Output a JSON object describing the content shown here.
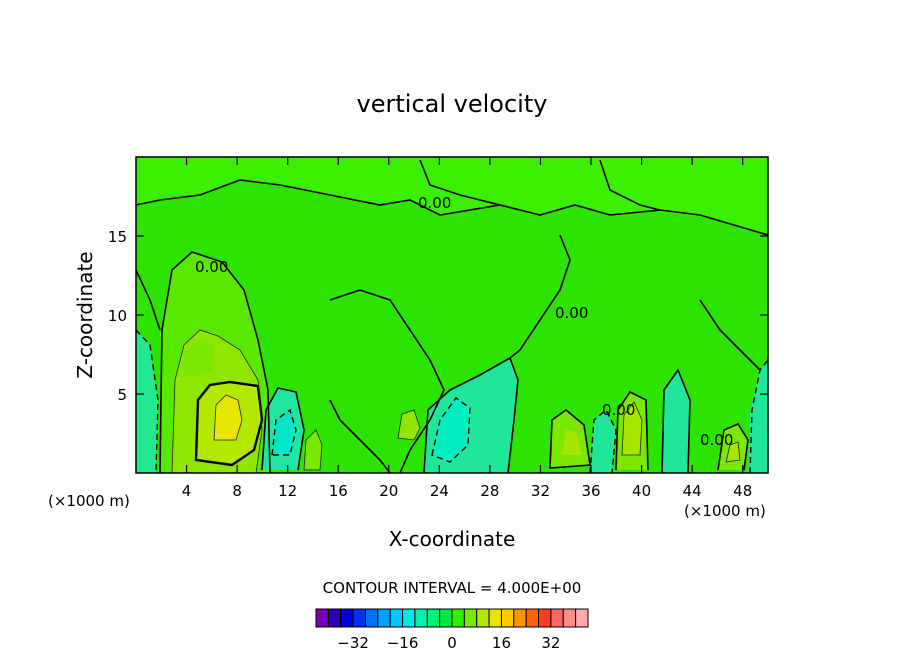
{
  "chart_data": {
    "type": "heatmap",
    "title": "vertical velocity",
    "xlabel": "X-coordinate",
    "ylabel": "Z-coordinate",
    "x_unit_left": "(×1000 m)",
    "x_unit_right": "(×1000 m)",
    "xlim": [
      0,
      50
    ],
    "ylim": [
      0,
      20
    ],
    "x_ticks": [
      "4",
      "8",
      "12",
      "16",
      "20",
      "24",
      "28",
      "32",
      "36",
      "40",
      "44",
      "48"
    ],
    "x_tick_values": [
      4,
      8,
      12,
      16,
      20,
      24,
      28,
      32,
      36,
      40,
      44,
      48
    ],
    "y_ticks": [
      "5",
      "10",
      "15"
    ],
    "y_tick_values": [
      5,
      10,
      15
    ],
    "contour_interval_text": "CONTOUR INTERVAL = 4.000E+00",
    "contour_interval": 4.0,
    "contour_label": "0.00",
    "colorbar": {
      "tick_labels": [
        "−32",
        "−16",
        "0",
        "16",
        "32"
      ],
      "tick_values": [
        -32,
        -16,
        0,
        16,
        32
      ],
      "colors": [
        "#7a00b4",
        "#2a00b4",
        "#0000dc",
        "#0030f0",
        "#0070ff",
        "#00a0ff",
        "#00c8ff",
        "#00e8e8",
        "#00f0b0",
        "#00f078",
        "#00e840",
        "#30f000",
        "#7ae800",
        "#b0e800",
        "#e6e600",
        "#ffc800",
        "#ff9600",
        "#ff6400",
        "#ff3c1e",
        "#ff6464",
        "#ff8c8c",
        "#ffaaaa"
      ]
    },
    "fields": [
      {
        "name": "background",
        "value_range": [
          0,
          4
        ],
        "color": "#2de300"
      },
      {
        "name": "updraft",
        "x": 6.8,
        "z": 3.8,
        "peak": 16,
        "color": "#e6e600"
      },
      {
        "name": "downdraft",
        "x": 11,
        "z": 2.2,
        "peak": -8,
        "color": "#00e8a0"
      },
      {
        "name": "downdraft",
        "x": 25,
        "z": 3.0,
        "peak": -8,
        "color": "#00e8a0"
      },
      {
        "name": "updraft",
        "x": 34,
        "z": 2.0,
        "peak": 8,
        "color": "#90e800"
      },
      {
        "name": "updraft",
        "x": 39.5,
        "z": 3.0,
        "peak": 8,
        "color": "#90e800"
      },
      {
        "name": "updraft",
        "x": 47,
        "z": 1.5,
        "peak": 8,
        "color": "#90e800"
      }
    ],
    "grid": false,
    "legend": "bottom-center"
  }
}
